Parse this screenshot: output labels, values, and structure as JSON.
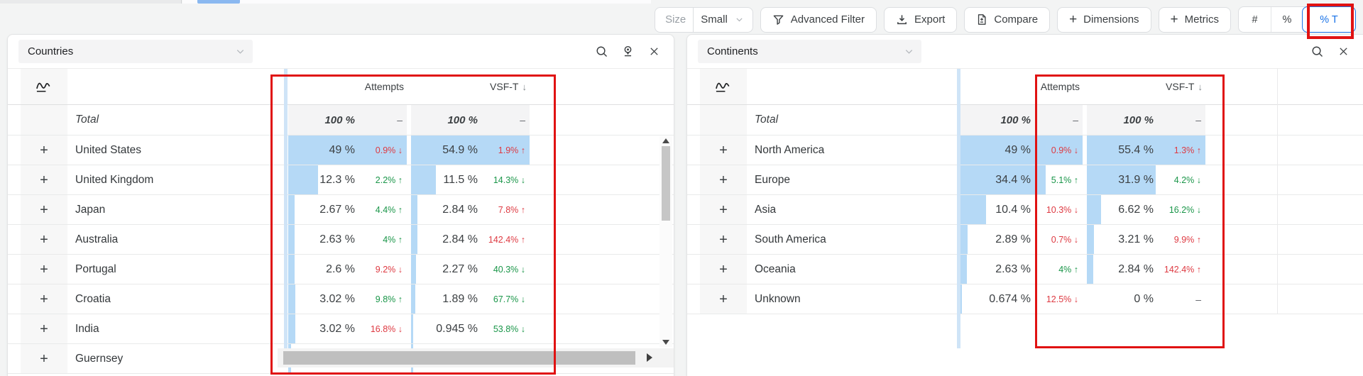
{
  "colors": {
    "accent": "#1a73e8",
    "positive": "#1a9649",
    "negative": "#de3a42",
    "bar": "#b5d9f6",
    "annotation": "#e01212"
  },
  "toolbar": {
    "size": {
      "label": "Size",
      "value": "Small"
    },
    "buttons": [
      {
        "id": "advanced-filter",
        "label": "Advanced Filter"
      },
      {
        "id": "export",
        "label": "Export"
      },
      {
        "id": "compare",
        "label": "Compare"
      },
      {
        "id": "dimensions",
        "label": "Dimensions"
      },
      {
        "id": "metrics",
        "label": "Metrics"
      }
    ],
    "display_modes": [
      {
        "label": "#",
        "active": false
      },
      {
        "label": "%",
        "active": false
      },
      {
        "label": "% T",
        "active": true
      }
    ]
  },
  "panels": [
    {
      "id": "countries",
      "title": "Countries",
      "columns": [
        {
          "label": "Attempts",
          "sorted": false
        },
        {
          "label": "VSF-T",
          "sorted": true,
          "sort_arrow": "↓"
        }
      ],
      "total_row": {
        "name": "Total",
        "attempts": {
          "value": "100 %",
          "change": "–",
          "arrow": "",
          "tone": "neutral",
          "bar": 0
        },
        "vsft": {
          "value": "100 %",
          "change": "–",
          "arrow": "",
          "tone": "neutral",
          "bar": 0
        }
      },
      "rows": [
        {
          "name": "United States",
          "attempts": {
            "value": "49 %",
            "change": "0.9%",
            "arrow": "↓",
            "tone": "neg",
            "bar": 100
          },
          "vsft": {
            "value": "54.9 %",
            "change": "1.9%",
            "arrow": "↑",
            "tone": "neg",
            "bar": 100
          }
        },
        {
          "name": "United Kingdom",
          "attempts": {
            "value": "12.3 %",
            "change": "2.2%",
            "arrow": "↑",
            "tone": "pos",
            "bar": 25
          },
          "vsft": {
            "value": "11.5 %",
            "change": "14.3%",
            "arrow": "↓",
            "tone": "pos",
            "bar": 21
          }
        },
        {
          "name": "Japan",
          "attempts": {
            "value": "2.67 %",
            "change": "4.4%",
            "arrow": "↑",
            "tone": "pos",
            "bar": 5.5
          },
          "vsft": {
            "value": "2.84 %",
            "change": "7.8%",
            "arrow": "↑",
            "tone": "neg",
            "bar": 5.2
          }
        },
        {
          "name": "Australia",
          "attempts": {
            "value": "2.63 %",
            "change": "4%",
            "arrow": "↑",
            "tone": "pos",
            "bar": 5.4
          },
          "vsft": {
            "value": "2.84 %",
            "change": "142.4%",
            "arrow": "↑",
            "tone": "neg",
            "bar": 5.2
          }
        },
        {
          "name": "Portugal",
          "attempts": {
            "value": "2.6 %",
            "change": "9.2%",
            "arrow": "↓",
            "tone": "neg",
            "bar": 5.3
          },
          "vsft": {
            "value": "2.27 %",
            "change": "40.3%",
            "arrow": "↓",
            "tone": "pos",
            "bar": 4.1
          }
        },
        {
          "name": "Croatia",
          "attempts": {
            "value": "3.02 %",
            "change": "9.8%",
            "arrow": "↑",
            "tone": "pos",
            "bar": 6.2
          },
          "vsft": {
            "value": "1.89 %",
            "change": "67.7%",
            "arrow": "↓",
            "tone": "pos",
            "bar": 3.4
          }
        },
        {
          "name": "India",
          "attempts": {
            "value": "3.02 %",
            "change": "16.8%",
            "arrow": "↓",
            "tone": "neg",
            "bar": 6.2
          },
          "vsft": {
            "value": "0.945 %",
            "change": "53.8%",
            "arrow": "↓",
            "tone": "pos",
            "bar": 1.7
          }
        },
        {
          "name": "Guernsey",
          "attempts": {
            "value": "",
            "change": "",
            "arrow": "",
            "tone": "neutral",
            "bar": 2.2
          },
          "vsft": {
            "value": "",
            "change": "",
            "arrow": "",
            "tone": "neutral",
            "bar": 1.5
          }
        }
      ]
    },
    {
      "id": "continents",
      "title": "Continents",
      "columns": [
        {
          "label": "Attempts",
          "sorted": false
        },
        {
          "label": "VSF-T",
          "sorted": true,
          "sort_arrow": "↓"
        }
      ],
      "total_row": {
        "name": "Total",
        "attempts": {
          "value": "100 %",
          "change": "–",
          "arrow": "",
          "tone": "neutral",
          "bar": 0
        },
        "vsft": {
          "value": "100 %",
          "change": "–",
          "arrow": "",
          "tone": "neutral",
          "bar": 0
        }
      },
      "rows": [
        {
          "name": "North America",
          "attempts": {
            "value": "49 %",
            "change": "0.9%",
            "arrow": "↓",
            "tone": "neg",
            "bar": 100
          },
          "vsft": {
            "value": "55.4 %",
            "change": "1.3%",
            "arrow": "↑",
            "tone": "neg",
            "bar": 100
          }
        },
        {
          "name": "Europe",
          "attempts": {
            "value": "34.4 %",
            "change": "5.1%",
            "arrow": "↑",
            "tone": "pos",
            "bar": 70
          },
          "vsft": {
            "value": "31.9 %",
            "change": "4.2%",
            "arrow": "↓",
            "tone": "pos",
            "bar": 58
          }
        },
        {
          "name": "Asia",
          "attempts": {
            "value": "10.4 %",
            "change": "10.3%",
            "arrow": "↓",
            "tone": "neg",
            "bar": 21
          },
          "vsft": {
            "value": "6.62 %",
            "change": "16.2%",
            "arrow": "↓",
            "tone": "pos",
            "bar": 12
          }
        },
        {
          "name": "South America",
          "attempts": {
            "value": "2.89 %",
            "change": "0.7%",
            "arrow": "↓",
            "tone": "neg",
            "bar": 5.9
          },
          "vsft": {
            "value": "3.21 %",
            "change": "9.9%",
            "arrow": "↑",
            "tone": "neg",
            "bar": 5.8
          }
        },
        {
          "name": "Oceania",
          "attempts": {
            "value": "2.63 %",
            "change": "4%",
            "arrow": "↑",
            "tone": "pos",
            "bar": 5.4
          },
          "vsft": {
            "value": "2.84 %",
            "change": "142.4%",
            "arrow": "↑",
            "tone": "neg",
            "bar": 5.1
          }
        },
        {
          "name": "Unknown",
          "attempts": {
            "value": "0.674 %",
            "change": "12.5%",
            "arrow": "↓",
            "tone": "neg",
            "bar": 1.4
          },
          "vsft": {
            "value": "0 %",
            "change": "–",
            "arrow": "",
            "tone": "neutral",
            "bar": 0
          }
        }
      ]
    }
  ]
}
